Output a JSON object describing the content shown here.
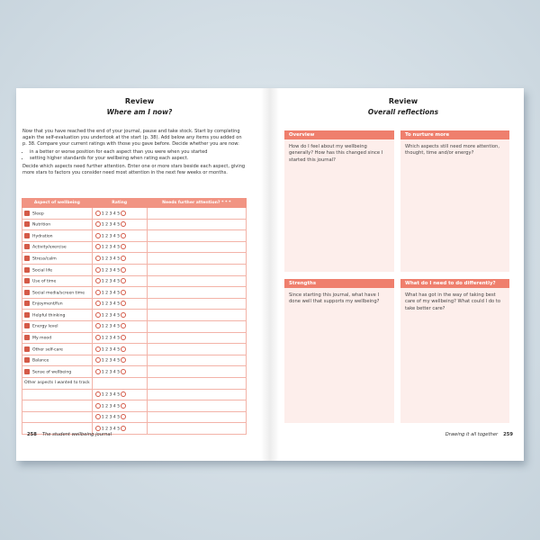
{
  "left_page": {
    "title": "Review",
    "subtitle": "Where am I now?",
    "intro": "Now that you have reached the end of your journal, pause and take stock. Start by completing again the self-evaluation you undertook at the start (p. 38). Add below any items you added on p. 38. Compare your current ratings with those you gave before. Decide whether you are now:",
    "bullets": [
      "in a better or worse position for each aspect than you were when you started",
      "setting higher standards for your wellbeing when rating each aspect."
    ],
    "instructions": "Decide which aspects need further attention. Enter one or more stars beside each aspect, giving more stars to factors you consider need most attention in the next few weeks or months.",
    "table": {
      "headers": [
        "Aspect of wellbeing",
        "Rating",
        "Needs further attention? * * *"
      ],
      "rating_scale": "1 2 3 4 5",
      "aspects": [
        "Sleep",
        "Nutrition",
        "Hydration",
        "Activity/exercise",
        "Stress/calm",
        "Social life",
        "Use of time",
        "Social media/screen time",
        "Enjoyment/fun",
        "Helpful thinking",
        "Energy level",
        "My mood",
        "Other self-care",
        "Balance",
        "Sense of wellbeing"
      ],
      "other_label": "Other aspects I wanted to track"
    }
  },
  "right_page": {
    "title": "Review",
    "subtitle": "Overall reflections",
    "boxes": [
      {
        "heading": "Overview",
        "prompt": "How do I feel about my wellbeing generally? How has this changed since I started this journal?"
      },
      {
        "heading": "To nurture more",
        "prompt": "Which aspects still need more attention, thought, time and/or energy?"
      },
      {
        "heading": "Strengths",
        "prompt": "Since starting this journal, what have I done well that supports my wellbeing?"
      },
      {
        "heading": "What do I need to do differently?",
        "prompt": "What has got in the way of taking best care of my wellbeing? What could I do to take better care?"
      }
    ]
  },
  "footer": {
    "left_page_number": "258",
    "left_text": "The student wellbeing journal",
    "right_text": "Drawing it all together",
    "right_page_number": "259"
  }
}
